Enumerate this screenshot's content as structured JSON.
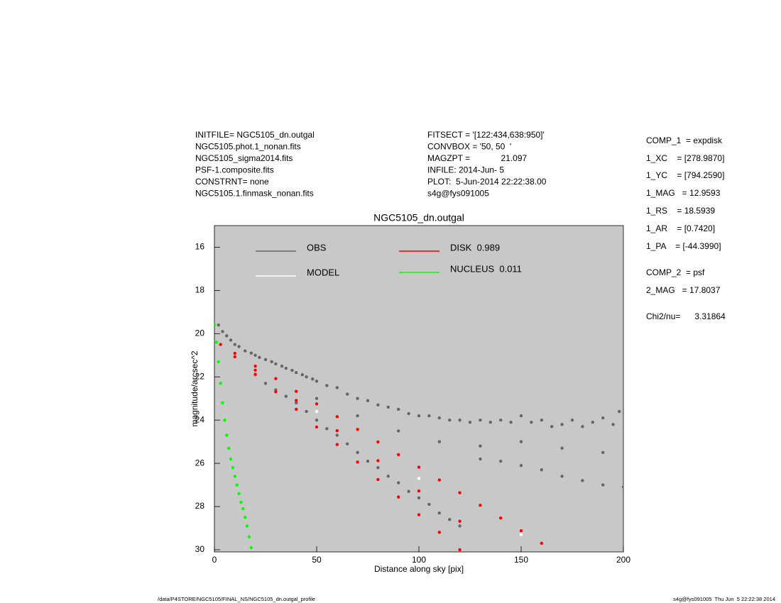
{
  "chart_data": {
    "type": "scatter",
    "title": "NGC5105_dn.outgal",
    "x_label": "Distance along sky [pix]",
    "y_label": "magnitude/arcsec^2",
    "xlim": [
      0,
      200
    ],
    "xticks": [
      0,
      50,
      100,
      150,
      200
    ],
    "ylim": [
      15,
      30.1
    ],
    "yticks": [
      16,
      18,
      20,
      22,
      24,
      26,
      28,
      30
    ],
    "y_inverted": true,
    "background": "#c8c8c8",
    "grid": false,
    "series": [
      {
        "name": "OBS",
        "color": "#666666",
        "x": [
          2,
          4,
          6,
          8,
          10,
          12,
          15,
          18,
          20,
          22,
          25,
          28,
          30,
          33,
          35,
          38,
          40,
          43,
          45,
          48,
          50,
          55,
          60,
          65,
          70,
          75,
          80,
          85,
          90,
          95,
          100,
          105,
          110,
          115,
          120,
          125,
          130,
          135,
          140,
          145,
          150,
          155,
          160,
          165,
          170,
          175,
          180,
          185,
          190,
          195,
          198,
          20,
          25,
          30,
          35,
          40,
          45,
          50,
          55,
          60,
          65,
          70,
          75,
          80,
          85,
          90,
          95,
          100,
          105,
          110,
          115,
          120,
          130,
          140,
          150,
          160,
          170,
          180,
          190,
          200,
          50,
          70,
          90,
          110,
          130,
          150,
          170,
          190
        ],
        "values": [
          19.6,
          19.9,
          20.1,
          20.3,
          20.5,
          20.6,
          20.8,
          20.9,
          21.0,
          21.1,
          21.2,
          21.3,
          21.4,
          21.5,
          21.6,
          21.7,
          21.8,
          21.9,
          22.0,
          22.1,
          22.2,
          22.4,
          22.5,
          22.8,
          23.0,
          23.1,
          23.3,
          23.4,
          23.5,
          23.7,
          23.8,
          23.8,
          23.9,
          24.0,
          24.0,
          24.1,
          24.0,
          24.1,
          24.0,
          24.1,
          23.8,
          24.1,
          24.0,
          24.3,
          24.2,
          24.0,
          24.3,
          24.1,
          23.9,
          24.2,
          23.6,
          21.9,
          22.3,
          22.6,
          22.9,
          23.2,
          23.6,
          24.0,
          24.4,
          24.7,
          25.1,
          25.5,
          25.9,
          26.2,
          26.6,
          26.9,
          27.3,
          27.6,
          27.9,
          28.3,
          28.6,
          28.9,
          25.8,
          25.9,
          26.1,
          26.3,
          26.6,
          26.8,
          27.0,
          27.1,
          23.0,
          23.8,
          24.5,
          25.0,
          25.2,
          25.0,
          25.3,
          25.5
        ]
      },
      {
        "name": "MODEL",
        "color": "#ffffff",
        "x": [
          3,
          50,
          100,
          150
        ],
        "values": [
          20.5,
          23.6,
          26.7,
          29.3
        ]
      },
      {
        "name": "DISK  0.989",
        "color": "#ff0000",
        "x": [
          3,
          10,
          20,
          30,
          40,
          50,
          60,
          70,
          80,
          90,
          100,
          110,
          120,
          10,
          20,
          30,
          40,
          50,
          60,
          70,
          80,
          90,
          100,
          110,
          120,
          130,
          140,
          150,
          160,
          20,
          40,
          60,
          80,
          100,
          120
        ],
        "values": [
          20.5,
          21.07,
          21.88,
          22.69,
          23.5,
          24.32,
          25.13,
          25.94,
          26.75,
          27.56,
          28.38,
          29.19,
          30.0,
          20.91,
          21.5,
          22.08,
          22.67,
          23.25,
          23.84,
          24.43,
          25.01,
          25.6,
          26.18,
          26.77,
          27.36,
          27.94,
          28.53,
          29.12,
          29.7,
          21.69,
          23.09,
          24.49,
          25.88,
          27.28,
          28.68
        ]
      },
      {
        "name": "NUCLEUS  0.011",
        "color": "#00ff00",
        "x": [
          0,
          1,
          2,
          3,
          4,
          5,
          6,
          7,
          8,
          9,
          10,
          11,
          12,
          13,
          14,
          15,
          16,
          17,
          18
        ],
        "values": [
          19.6,
          20.4,
          21.3,
          22.3,
          23.2,
          24.0,
          24.7,
          25.3,
          25.8,
          26.2,
          26.6,
          27.0,
          27.4,
          27.8,
          28.1,
          28.5,
          28.9,
          29.4,
          29.9
        ]
      }
    ]
  },
  "info_left": [
    "INITFILE= NGC5105_dn.outgal",
    "NGC5105.phot.1_nonan.fits",
    "NGC5105_sigma2014.fits",
    "PSF-1.composite.fits",
    "CONSTRNT= none",
    "NGC5105.1.finmask_nonan.fits"
  ],
  "info_middle": [
    "FITSECT = '[122:434,638:950]'",
    "CONVBOX = '50, 50  '",
    "MAGZPT =             21.097",
    "INFILE: 2014-Jun- 5",
    "PLOT:  5-Jun-2014 22:22:38.00",
    "s4g@fys091005"
  ],
  "components": [
    "COMP_1  = expdisk",
    "1_XC    = [278.9870]",
    "1_YC    = [794.2590]",
    "1_MAG   = 12.9593",
    "1_RS    = 18.5939",
    "1_AR    = [0.7420]",
    "1_PA    = [-44.3990]",
    "COMP_2  = psf",
    "2_MAG   = 17.8037",
    "Chi2/nu=      3.31864"
  ],
  "footer_left": "/data/P4STORE/NGC5105/FINAL_NS/NGC5105_dn.outgal_profile",
  "footer_right": "s4g@fys091005  Thu Jun  5 22:22:38 2014"
}
